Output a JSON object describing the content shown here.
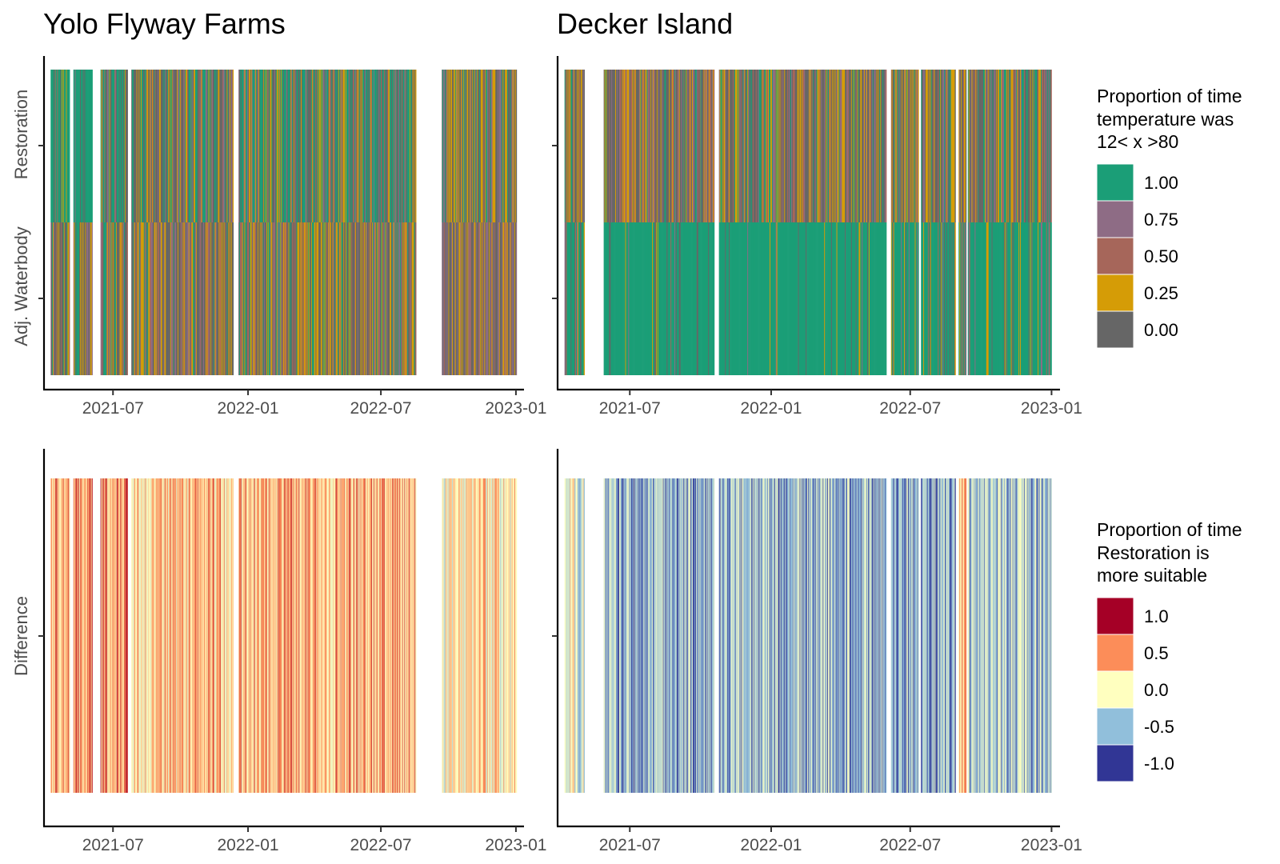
{
  "panels": {
    "yolo": {
      "title": "Yolo Flyway Farms"
    },
    "decker": {
      "title": "Decker Island"
    }
  },
  "chart_data": [
    {
      "type": "heatmap",
      "panel": "yolo",
      "title": "Yolo Flyway Farms",
      "rows": [
        "Restoration",
        "Adj. Waterbody"
      ],
      "x_ticks": [
        "2021-07",
        "2022-01",
        "2022-07",
        "2023-01"
      ],
      "x_range": [
        "2021-03-29",
        "2023-01-12"
      ],
      "data_segments": [
        [
          "2021-04-07",
          "2021-05-02"
        ],
        [
          "2021-05-08",
          "2021-06-02"
        ],
        [
          "2021-06-14",
          "2021-07-20"
        ],
        [
          "2021-07-26",
          "2021-12-11"
        ],
        [
          "2021-12-19",
          "2022-08-17"
        ],
        [
          "2022-09-22",
          "2023-01-01"
        ]
      ],
      "segment_fill": [
        [
          0.75,
          0.18
        ],
        [
          0.8,
          0.2
        ],
        [
          0.55,
          0.2
        ],
        [
          0.2,
          0.08
        ],
        [
          0.3,
          0.12
        ],
        [
          0.1,
          0.03
        ]
      ],
      "segments_rendered_as": "narrow daily stripes"
    },
    {
      "type": "heatmap",
      "panel": "decker",
      "title": "Decker Island",
      "rows": [
        "Restoration",
        "Adj. Waterbody"
      ],
      "x_ticks": [
        "2021-07",
        "2022-01",
        "2022-07",
        "2023-01"
      ],
      "x_range": [
        "2021-03-29",
        "2023-01-12"
      ],
      "data_segments": [
        [
          "2021-04-07",
          "2021-05-02"
        ],
        [
          "2021-05-28",
          "2021-10-18"
        ],
        [
          "2021-10-25",
          "2022-05-30"
        ],
        [
          "2022-06-06",
          "2022-07-11"
        ],
        [
          "2022-07-15",
          "2022-08-28"
        ],
        [
          "2022-09-02",
          "2022-09-11"
        ],
        [
          "2022-09-14",
          "2022-12-31"
        ]
      ],
      "segment_fill": [
        [
          0.15,
          0.55
        ],
        [
          0.1,
          0.85
        ],
        [
          0.15,
          0.9
        ],
        [
          0.1,
          0.8
        ],
        [
          0.15,
          0.75
        ],
        [
          0.05,
          0.6
        ],
        [
          0.2,
          0.7
        ]
      ],
      "segments_rendered_as": "narrow daily stripes"
    },
    {
      "type": "heatmap",
      "panel": "yolo",
      "rows": [
        "Difference"
      ],
      "x_ticks": [
        "2021-07",
        "2022-01",
        "2022-07",
        "2023-01"
      ],
      "x_range": [
        "2021-03-29",
        "2023-01-12"
      ],
      "data_segments": [
        [
          "2021-04-07",
          "2021-05-02"
        ],
        [
          "2021-05-08",
          "2021-06-02"
        ],
        [
          "2021-06-14",
          "2021-07-20"
        ],
        [
          "2021-07-26",
          "2021-12-11"
        ],
        [
          "2021-12-19",
          "2022-08-17"
        ],
        [
          "2022-09-22",
          "2023-01-01"
        ]
      ],
      "segment_mean": [
        0.35,
        0.4,
        0.5,
        0.25,
        0.35,
        0.12
      ],
      "segments_rendered_as": "narrow daily stripes"
    },
    {
      "type": "heatmap",
      "panel": "decker",
      "rows": [
        "Difference"
      ],
      "x_ticks": [
        "2021-07",
        "2022-01",
        "2022-07",
        "2023-01"
      ],
      "x_range": [
        "2021-03-29",
        "2023-01-12"
      ],
      "data_segments": [
        [
          "2021-04-07",
          "2021-05-02"
        ],
        [
          "2021-05-28",
          "2021-10-18"
        ],
        [
          "2021-10-25",
          "2022-05-30"
        ],
        [
          "2022-06-06",
          "2022-07-11"
        ],
        [
          "2022-07-15",
          "2022-08-28"
        ],
        [
          "2022-09-02",
          "2022-09-11"
        ],
        [
          "2022-09-14",
          "2022-12-31"
        ]
      ],
      "segment_mean": [
        -0.15,
        -0.6,
        -0.5,
        -0.65,
        -0.55,
        0.3,
        -0.45
      ],
      "segments_rendered_as": "narrow daily stripes"
    }
  ],
  "legends": {
    "proportion": {
      "title": [
        "Proportion of time",
        "temperature was",
        "12< x >80"
      ],
      "items": [
        {
          "label": "1.00",
          "color": "#1b9e77"
        },
        {
          "label": "0.75",
          "color": "#8e6c85"
        },
        {
          "label": "0.50",
          "color": "#a6665a"
        },
        {
          "label": "0.25",
          "color": "#d59c06"
        },
        {
          "label": "0.00",
          "color": "#666666"
        }
      ]
    },
    "difference": {
      "title": [
        "Proportion of time",
        "Restoration is",
        "more suitable"
      ],
      "items": [
        {
          "label": "1.0",
          "color": "#a50026"
        },
        {
          "label": "0.5",
          "color": "#fc8d59"
        },
        {
          "label": "0.0",
          "color": "#ffffbf"
        },
        {
          "label": "-0.5",
          "color": "#91bfdb"
        },
        {
          "label": "-1.0",
          "color": "#313695"
        }
      ]
    }
  }
}
